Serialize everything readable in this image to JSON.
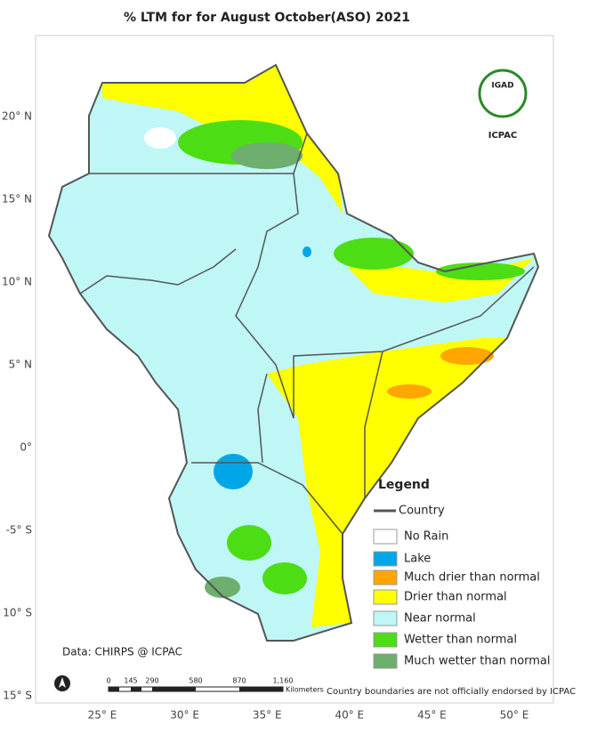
{
  "title": "% LTM for  for August  October(ASO)  2021",
  "logo": {
    "emblem": "IGAD",
    "name": "ICPAC"
  },
  "lat_labels": [
    "20° N",
    "15° N",
    "10° N",
    "5° N",
    "0°",
    "-5° S",
    "10° S",
    "15° S"
  ],
  "lon_labels": [
    "25° E",
    "30° E",
    "35° E",
    "40° E",
    "45° E",
    "50° E"
  ],
  "legend": {
    "title": "Legend",
    "country": "Country",
    "items": [
      {
        "label": "No Rain",
        "color": "#ffffff"
      },
      {
        "label": "Lake",
        "color": "#00a6e6"
      },
      {
        "label": "Much drier than normal",
        "color": "#ffa600"
      },
      {
        "label": "Drier than normal",
        "color": "#ffff00"
      },
      {
        "label": "Near normal",
        "color": "#bff7f7"
      },
      {
        "label": "Wetter than normal",
        "color": "#4cdd14"
      },
      {
        "label": "Much wetter than normal",
        "color": "#6eae6e"
      }
    ]
  },
  "credit": "Data: CHIRPS @ ICPAC",
  "scale": {
    "labels": [
      "0",
      "145",
      "290",
      "580",
      "870",
      "1,160"
    ],
    "unit": "Kilometers"
  },
  "disclaimer": "Country boundaries are not officially endorsed by ICPAC"
}
